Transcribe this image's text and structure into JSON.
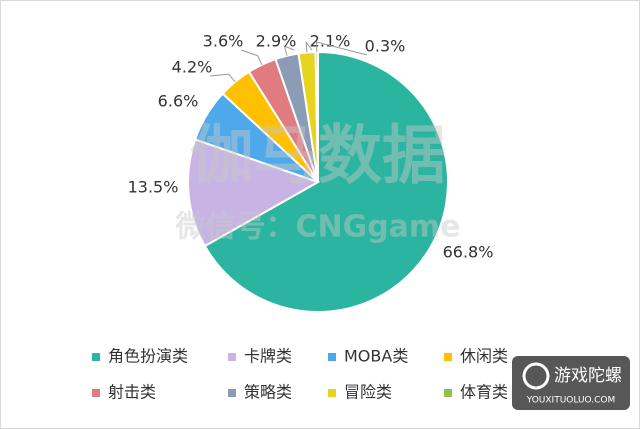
{
  "chart_data": {
    "type": "pie",
    "categories": [
      "角色扮演类",
      "卡牌类",
      "MOBA类",
      "休闲类",
      "射击类",
      "策略类",
      "冒险类",
      "体育类"
    ],
    "values": [
      66.8,
      13.5,
      6.6,
      4.2,
      3.6,
      2.9,
      2.1,
      0.3
    ],
    "value_labels": [
      "66.8%",
      "13.5%",
      "6.6%",
      "4.2%",
      "3.6%",
      "2.9%",
      "2.1%",
      "0.3%"
    ],
    "colors": [
      "#2bb5a0",
      "#c8b4e4",
      "#4ea9ea",
      "#ffc000",
      "#e07b80",
      "#8c9cb7",
      "#e6d41e",
      "#8fc250"
    ],
    "legend": "bottom",
    "watermark": [
      "伽马数据",
      "微信号：CNGgame"
    ]
  },
  "logo": {
    "title": "游戏陀螺",
    "url": "YOUXITUOLUO.COM"
  }
}
